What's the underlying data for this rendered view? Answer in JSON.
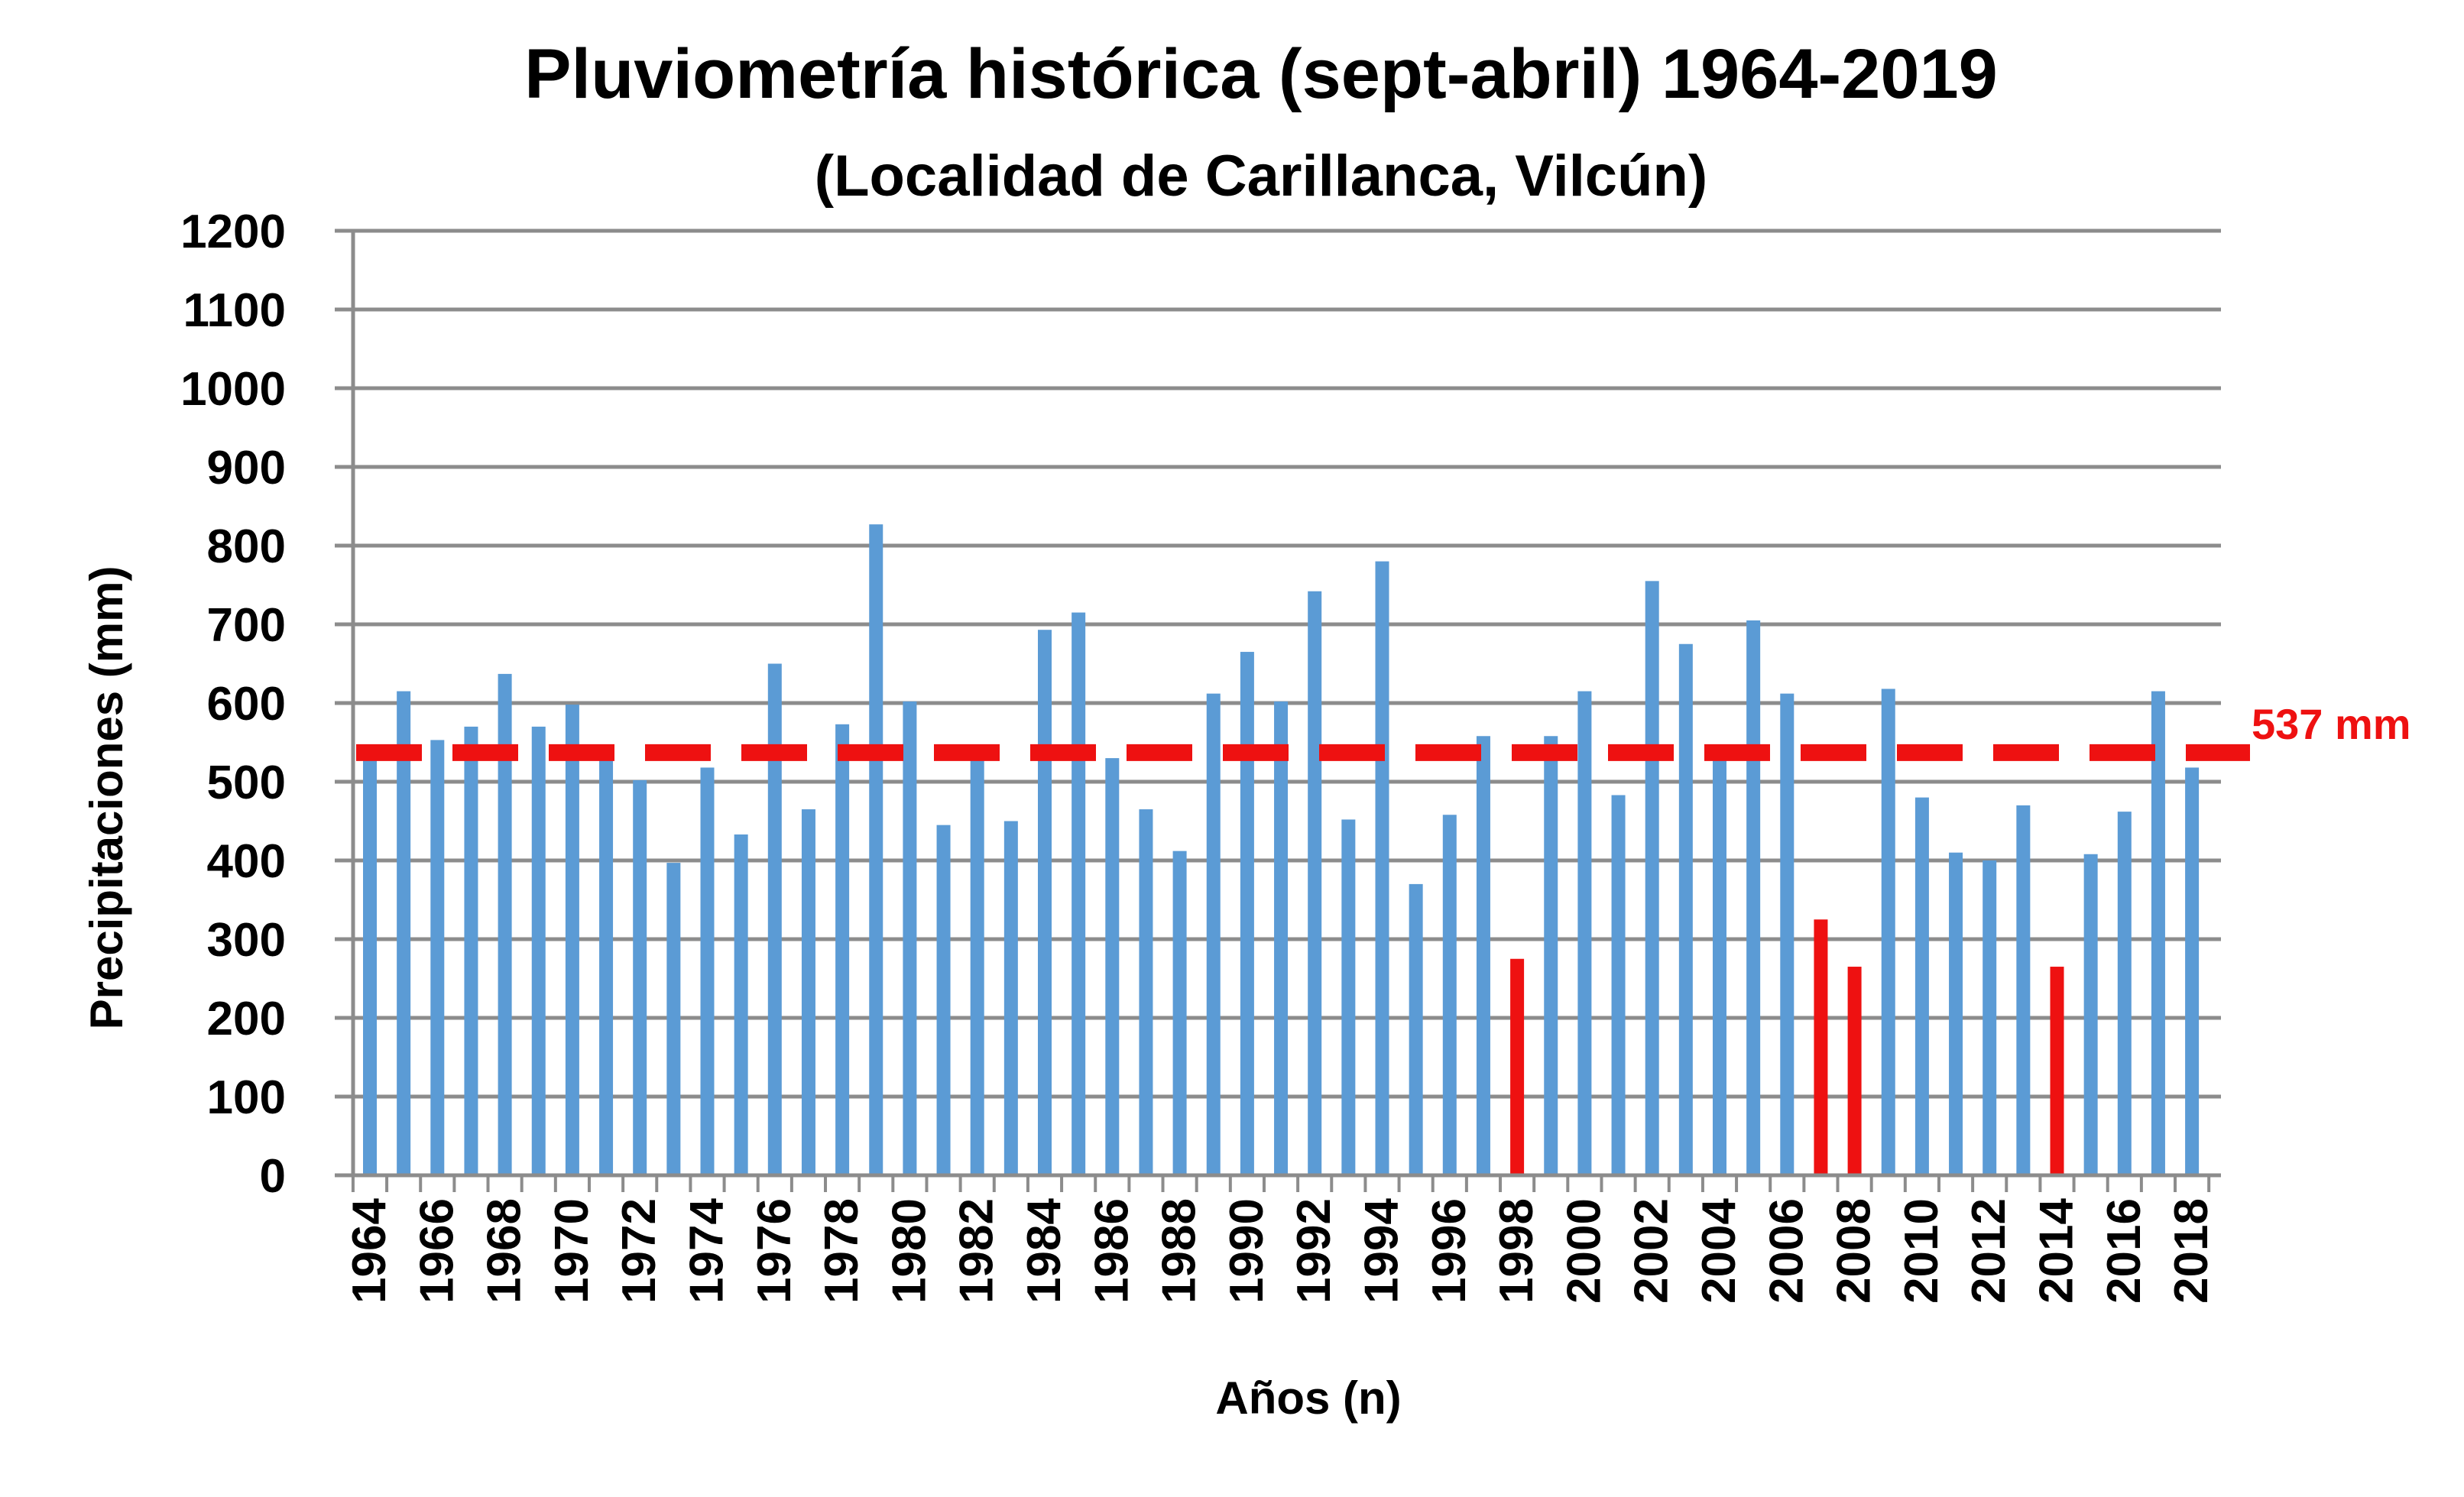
{
  "chart_data": {
    "type": "bar",
    "title": "Pluviometría histórica (sept-abril) 1964-2019",
    "subtitle": "(Localidad de Carillanca, Vilcún)",
    "xlabel": "Años (n)",
    "ylabel": "Precipitaciones (mm)",
    "ylim": [
      0,
      1200
    ],
    "yticks": [
      "0",
      "100",
      "200",
      "300",
      "400",
      "500",
      "600",
      "700",
      "800",
      "900",
      "1000",
      "1100",
      "1200"
    ],
    "xtick_labels": [
      "1964",
      "1966",
      "1968",
      "1970",
      "1972",
      "1974",
      "1976",
      "1978",
      "1980",
      "1982",
      "1984",
      "1986",
      "1988",
      "1990",
      "1992",
      "1994",
      "1996",
      "1998",
      "2000",
      "2002",
      "2004",
      "2006",
      "2008",
      "2010",
      "2012",
      "2014",
      "2016",
      "2018"
    ],
    "grid": true,
    "categories": [
      1964,
      1965,
      1966,
      1967,
      1968,
      1969,
      1970,
      1971,
      1972,
      1973,
      1974,
      1975,
      1976,
      1977,
      1978,
      1979,
      1980,
      1981,
      1982,
      1983,
      1984,
      1985,
      1986,
      1987,
      1988,
      1989,
      1990,
      1991,
      1992,
      1993,
      1994,
      1995,
      1996,
      1997,
      1998,
      1999,
      2000,
      2001,
      2002,
      2003,
      2004,
      2005,
      2006,
      2007,
      2008,
      2009,
      2010,
      2011,
      2012,
      2013,
      2014,
      2015,
      2016,
      2017,
      2018
    ],
    "values": [
      545,
      615,
      553,
      570,
      637,
      570,
      598,
      530,
      502,
      397,
      518,
      433,
      650,
      465,
      573,
      827,
      602,
      445,
      532,
      450,
      693,
      715,
      530,
      465,
      412,
      612,
      665,
      602,
      742,
      452,
      780,
      370,
      458,
      558,
      275,
      558,
      615,
      483,
      755,
      675,
      545,
      705,
      612,
      325,
      265,
      618,
      480,
      410,
      400,
      470,
      265,
      408,
      462,
      615,
      518
    ],
    "highlighted_years": [
      1998,
      2007,
      2008,
      2014
    ],
    "colors": {
      "bar": "#5B9BD5",
      "highlight": "#EE1111",
      "average_line": "#EE1111",
      "grid": "#8C8C8C"
    },
    "average": {
      "value": 537,
      "label": "537 mm"
    }
  }
}
